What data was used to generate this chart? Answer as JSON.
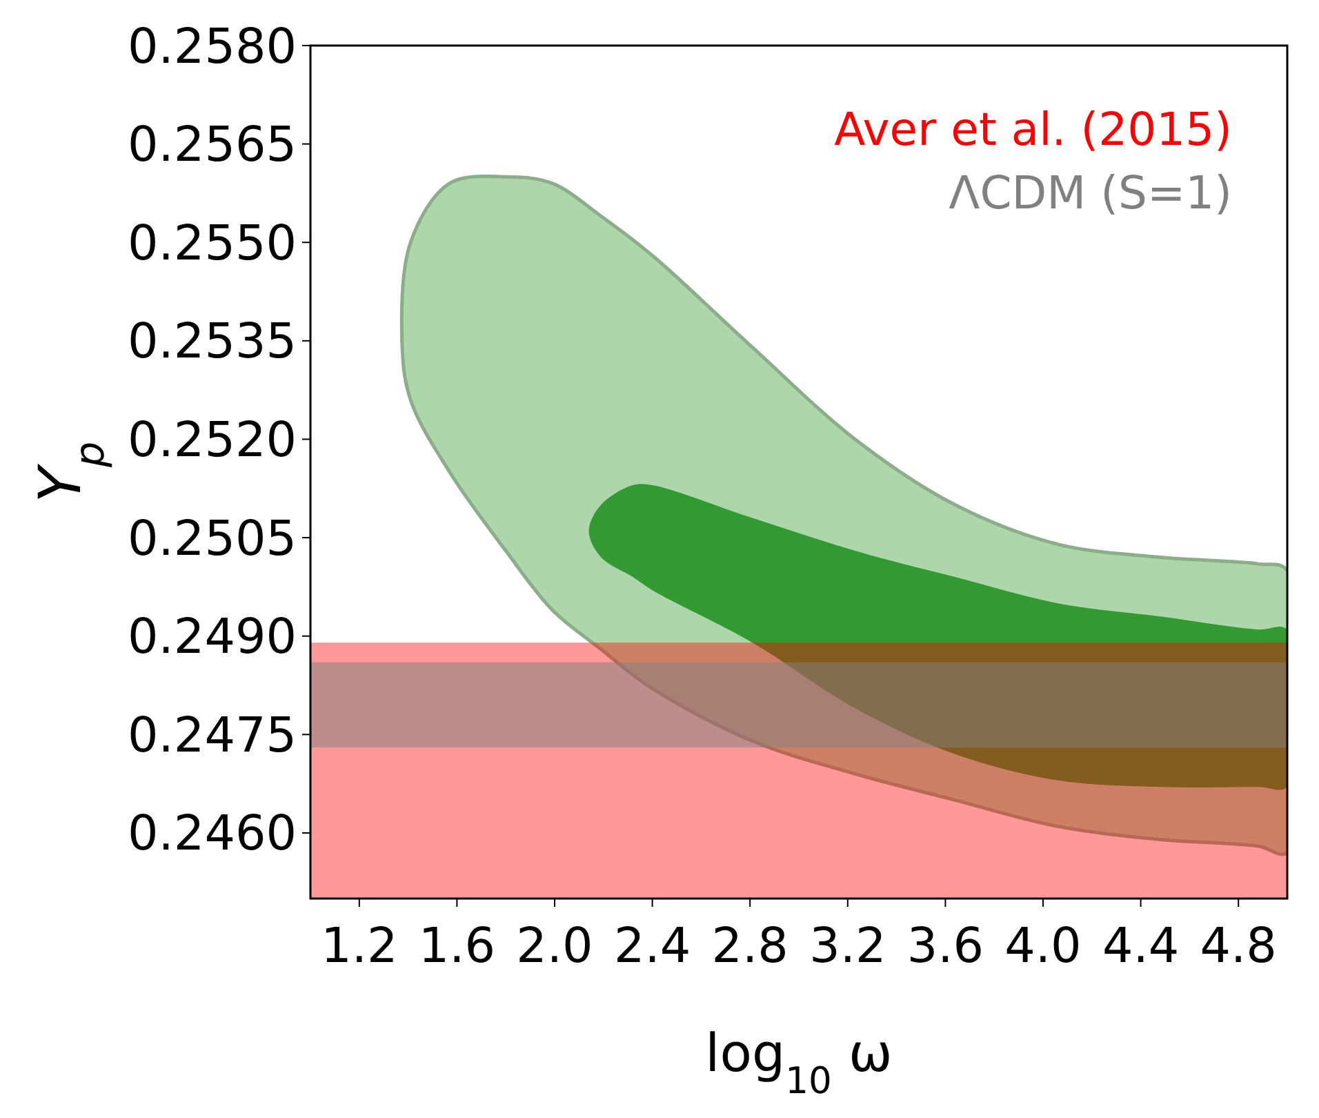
{
  "chart_data": {
    "type": "area",
    "xlabel": "log$_{10}$ ω",
    "ylabel": "Y$_{p}$",
    "xlim": [
      1.0,
      5.0
    ],
    "xticks": [
      1.2,
      1.6,
      {
        "value": 2.0,
        "label": "2.0"
      },
      2.4,
      2.8,
      3.2,
      3.6,
      {
        "value": 4.0,
        "label": "4.0"
      },
      4.4,
      4.8
    ],
    "ylim": [
      0.245,
      0.258
    ],
    "yticks": [
      {
        "value": 0.246,
        "label": "0.2460"
      },
      {
        "value": 0.2475,
        "label": "0.2475"
      },
      {
        "value": 0.249,
        "label": "0.2490"
      },
      {
        "value": 0.2505,
        "label": "0.2505"
      },
      {
        "value": 0.252,
        "label": "0.2520"
      },
      {
        "value": 0.2535,
        "label": "0.2535"
      },
      {
        "value": 0.255,
        "label": "0.2550"
      },
      {
        "value": 0.2565,
        "label": "0.2565"
      },
      {
        "value": 0.258,
        "label": "0.2580"
      }
    ],
    "grid": false,
    "series": [
      {
        "color": "#add6ab",
        "x": [
          1.375,
          1.41,
          1.57,
          1.8,
          1.99,
          2.19,
          2.4,
          2.81,
          3.23,
          3.64,
          4.06,
          4.48,
          4.88,
          5.0,
          5.0,
          4.88,
          4.48,
          4.06,
          3.64,
          3.23,
          2.81,
          2.4,
          2.19,
          1.99,
          1.8,
          1.57,
          1.41
        ],
        "values": [
          0.2535,
          0.255,
          0.2559,
          0.256,
          0.2559,
          0.2554,
          0.2548,
          0.2534,
          0.252,
          0.251,
          0.2504,
          0.2502,
          0.2501,
          0.25,
          0.2457,
          0.2458,
          0.2459,
          0.2461,
          0.2465,
          0.2469,
          0.2474,
          0.2482,
          0.2488,
          0.2494,
          0.2503,
          0.2515,
          0.2526
        ]
      },
      {
        "color": "#339933",
        "x": [
          2.14,
          2.19,
          2.32,
          2.4,
          2.81,
          3.23,
          3.64,
          4.06,
          4.48,
          4.88,
          5.0,
          5.0,
          4.88,
          4.48,
          4.06,
          3.64,
          3.23,
          2.81,
          2.4,
          2.32,
          2.19
        ],
        "values": [
          0.2506,
          0.251,
          0.2513,
          0.2513,
          0.2508,
          0.2503,
          0.2499,
          0.2495,
          0.2493,
          0.2491,
          0.2491,
          0.2467,
          0.2467,
          0.2467,
          0.2468,
          0.2472,
          0.2479,
          0.2489,
          0.2497,
          0.2499,
          0.2502
        ]
      }
    ],
    "bands": [
      {
        "axis": "y",
        "from": 0.245,
        "to": 0.2489,
        "label": "Aver et al. (2015)",
        "color": "#ff0000"
      },
      {
        "axis": "y",
        "from": 0.2473,
        "to": 0.2486,
        "label": "ΛCDM (S=1)",
        "color": "#808080"
      }
    ]
  }
}
